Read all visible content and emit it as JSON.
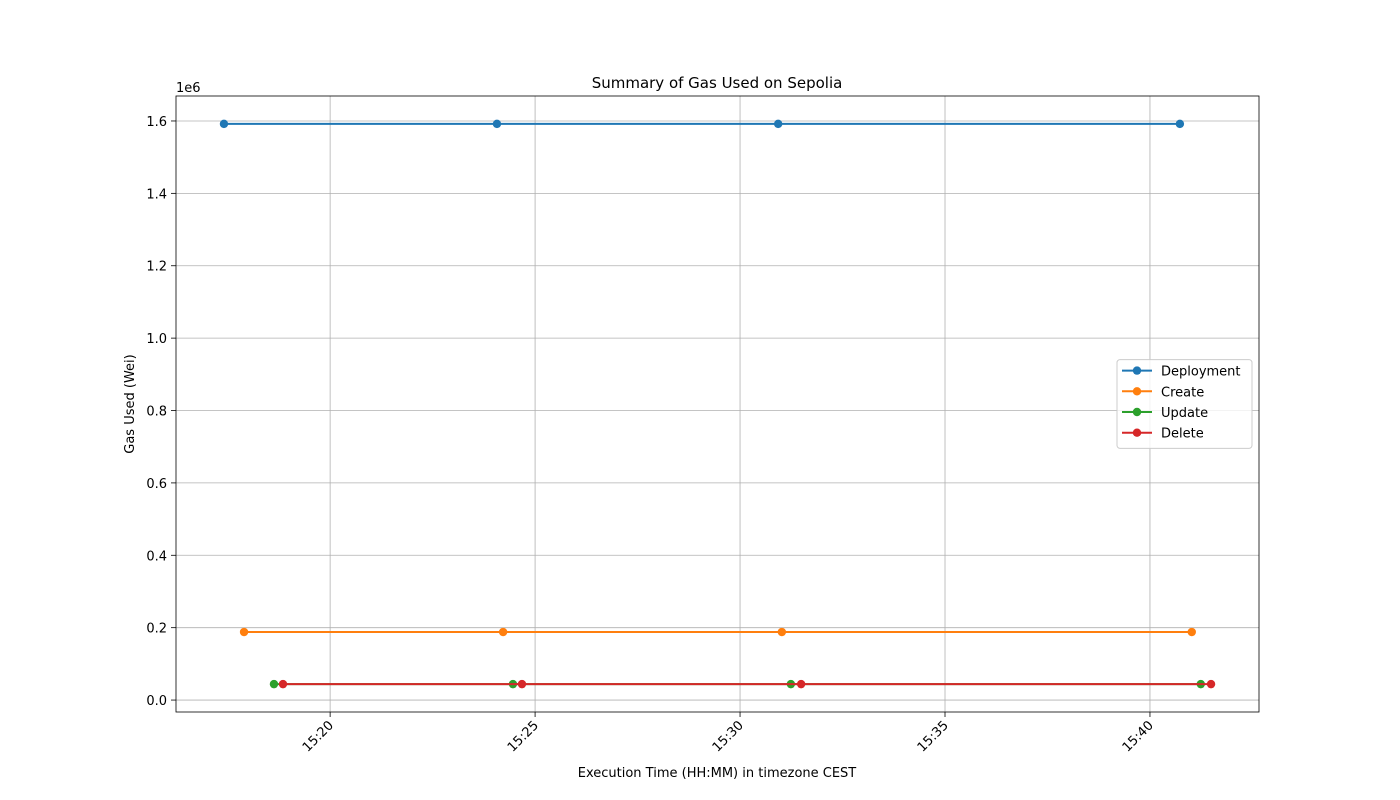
{
  "chart_data": {
    "type": "line",
    "title": "Summary of Gas Used on Sepolia",
    "x_label": "Execution Time (HH:MM) in timezone CEST",
    "y_label": "Gas Used (Wei)",
    "y_offset_text": "1e6",
    "xlim": [
      916.24,
      942.66
    ],
    "xticks": [
      {
        "value": 920,
        "label": "15:20"
      },
      {
        "value": 925,
        "label": "15:25"
      },
      {
        "value": 930,
        "label": "15:30"
      },
      {
        "value": 935,
        "label": "15:35"
      },
      {
        "value": 940,
        "label": "15:40"
      }
    ],
    "ylim": [
      -33000,
      1669000
    ],
    "yticks": [
      {
        "value": 0,
        "label": "0.0"
      },
      {
        "value": 200000,
        "label": "0.2"
      },
      {
        "value": 400000,
        "label": "0.4"
      },
      {
        "value": 600000,
        "label": "0.6"
      },
      {
        "value": 800000,
        "label": "0.8"
      },
      {
        "value": 1000000,
        "label": "1.0"
      },
      {
        "value": 1200000,
        "label": "1.2"
      },
      {
        "value": 1400000,
        "label": "1.4"
      },
      {
        "value": 1600000,
        "label": "1.6"
      }
    ],
    "grid": true,
    "legend": "center right",
    "series": [
      {
        "name": "Deployment",
        "color": "#1f77b4",
        "x": [
          917.41,
          924.07,
          930.93,
          940.73
        ],
        "values": [
          1592000,
          1592000,
          1592000,
          1592000
        ]
      },
      {
        "name": "Create",
        "color": "#ff7f0e",
        "x": [
          917.9,
          924.22,
          931.02,
          941.02
        ],
        "values": [
          188000,
          188000,
          188000,
          188000
        ]
      },
      {
        "name": "Update",
        "color": "#2ca02c",
        "x": [
          918.63,
          924.46,
          931.24,
          941.24
        ],
        "values": [
          44000,
          44000,
          44000,
          44000
        ]
      },
      {
        "name": "Delete",
        "color": "#d62728",
        "x": [
          918.85,
          924.68,
          931.49,
          941.49
        ],
        "values": [
          44000,
          44000,
          44000,
          44000
        ]
      }
    ]
  }
}
